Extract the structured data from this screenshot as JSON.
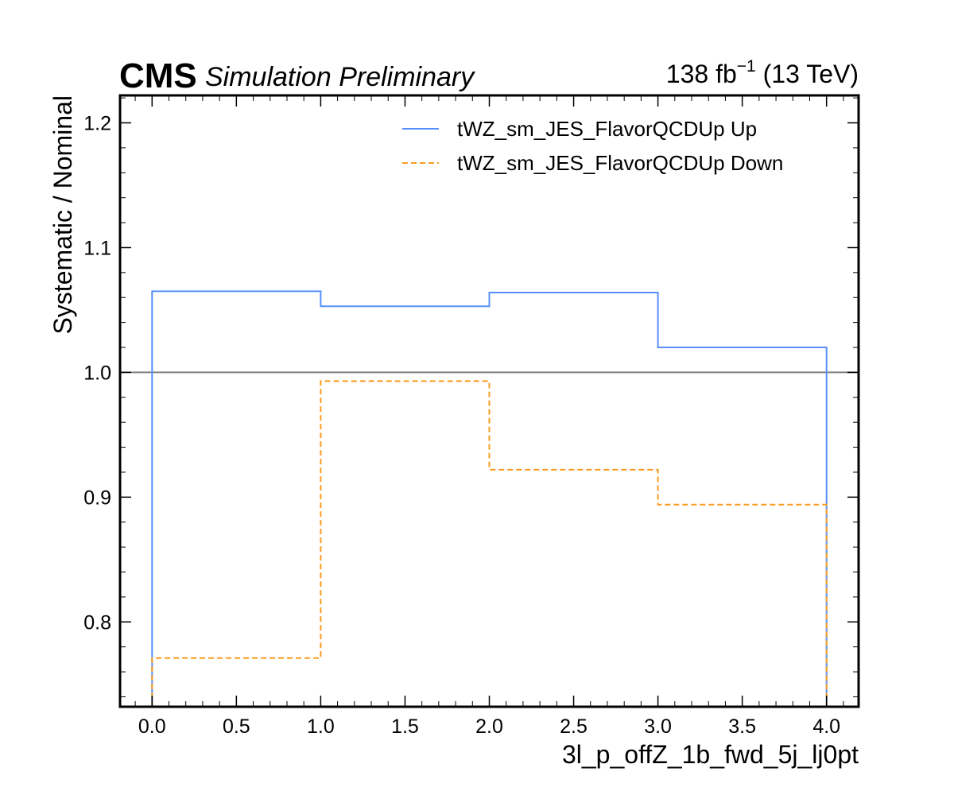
{
  "header": {
    "experiment": "CMS",
    "subtitle": "Simulation Preliminary",
    "lumi_value": "138 fb",
    "lumi_exponent": "−1",
    "lumi_energy": " (13 TeV)"
  },
  "chart_data": {
    "type": "line",
    "xlabel": "3l_p_offZ_1b_fwd_5j_lj0pt",
    "ylabel": "Systematic / Nominal",
    "xlim": [
      -0.19,
      4.19
    ],
    "ylim": [
      0.732,
      1.222
    ],
    "bin_edges": [
      0,
      1,
      2,
      3,
      4
    ],
    "x_ticks": [
      0.0,
      0.5,
      1.0,
      1.5,
      2.0,
      2.5,
      3.0,
      3.5,
      4.0
    ],
    "x_tick_labels": [
      "0.0",
      "0.5",
      "1.0",
      "1.5",
      "2.0",
      "2.5",
      "3.0",
      "3.5",
      "4.0"
    ],
    "y_ticks": [
      0.8,
      0.9,
      1.0,
      1.1,
      1.2
    ],
    "y_tick_labels": [
      "0.8",
      "0.9",
      "1.0",
      "1.1",
      "1.2"
    ],
    "reference_line": 1.0,
    "grid": false,
    "legend_position": "top-right",
    "series": [
      {
        "name": "tWZ_sm_JES_FlavorQCDUp Up",
        "values": [
          1.065,
          1.053,
          1.064,
          1.02
        ],
        "color": "#5790fc",
        "style": "solid"
      },
      {
        "name": "tWZ_sm_JES_FlavorQCDUp Down",
        "values": [
          0.771,
          0.993,
          0.922,
          0.894
        ],
        "color": "#f89c20",
        "style": "dashed"
      }
    ],
    "reference_color": "#808080"
  }
}
